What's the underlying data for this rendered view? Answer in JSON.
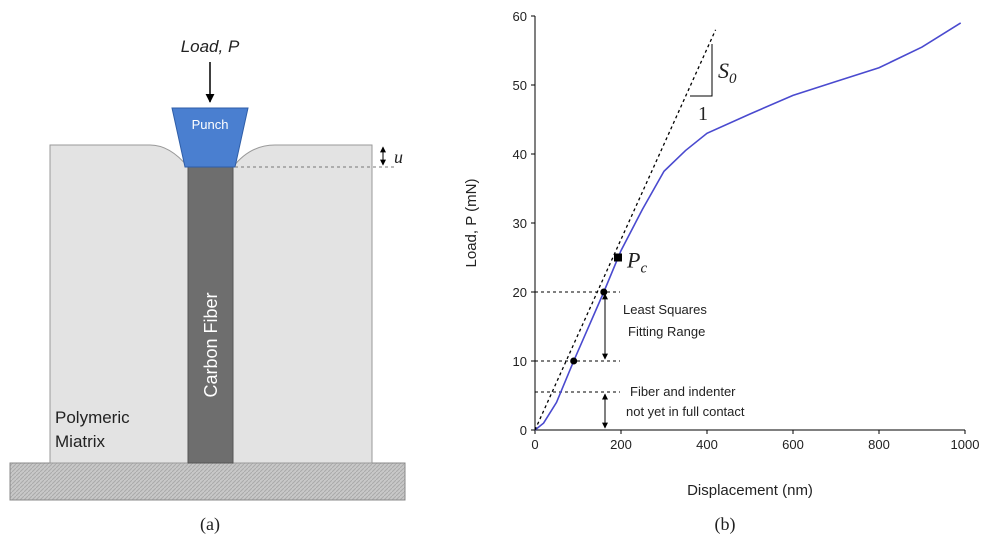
{
  "diagram": {
    "load_label": "Load, P",
    "punch_label": "Punch",
    "u_label": "u",
    "fiber_label": "Carbon Fiber",
    "matrix_label": [
      "Polymeric",
      "Miatrix"
    ]
  },
  "captions": [
    "(a)",
    "(b)"
  ],
  "chart_data": {
    "type": "line",
    "x_label": "Displacement (nm)",
    "y_label": "Load, P (mN)",
    "xlim": [
      0,
      1000
    ],
    "xticks": [
      0,
      200,
      400,
      600,
      800,
      1000
    ],
    "ylim": [
      0,
      60
    ],
    "yticks": [
      0,
      10,
      20,
      30,
      40,
      50,
      60
    ],
    "series": [
      {
        "color": "#4a4acf",
        "x": [
          0,
          20,
          50,
          90,
          160,
          200,
          250,
          300,
          350,
          400,
          500,
          600,
          700,
          800,
          900,
          990
        ],
        "values": [
          0,
          1,
          4,
          10,
          20,
          26,
          32,
          37.5,
          40.5,
          43,
          45.8,
          48.5,
          50.5,
          52.5,
          55.5,
          59
        ]
      },
      {
        "color": "#000000",
        "dash": true,
        "x": [
          0,
          420
        ],
        "values": [
          0,
          58
        ]
      }
    ],
    "points": {
      "x": [
        90,
        160
      ],
      "values": [
        10,
        20
      ]
    },
    "pc_point": {
      "x": 193,
      "value": 25
    },
    "hlines": [
      20,
      10,
      5.5
    ],
    "pc_label": {
      "main": "P",
      "sub": "c"
    },
    "s0_label": {
      "main": "S",
      "sub": "0"
    },
    "slope_run": "1",
    "fit_range": [
      "Least Squares",
      "Fitting Range"
    ],
    "contact_note": [
      "Fiber and indenter",
      "not yet in full contact"
    ]
  }
}
